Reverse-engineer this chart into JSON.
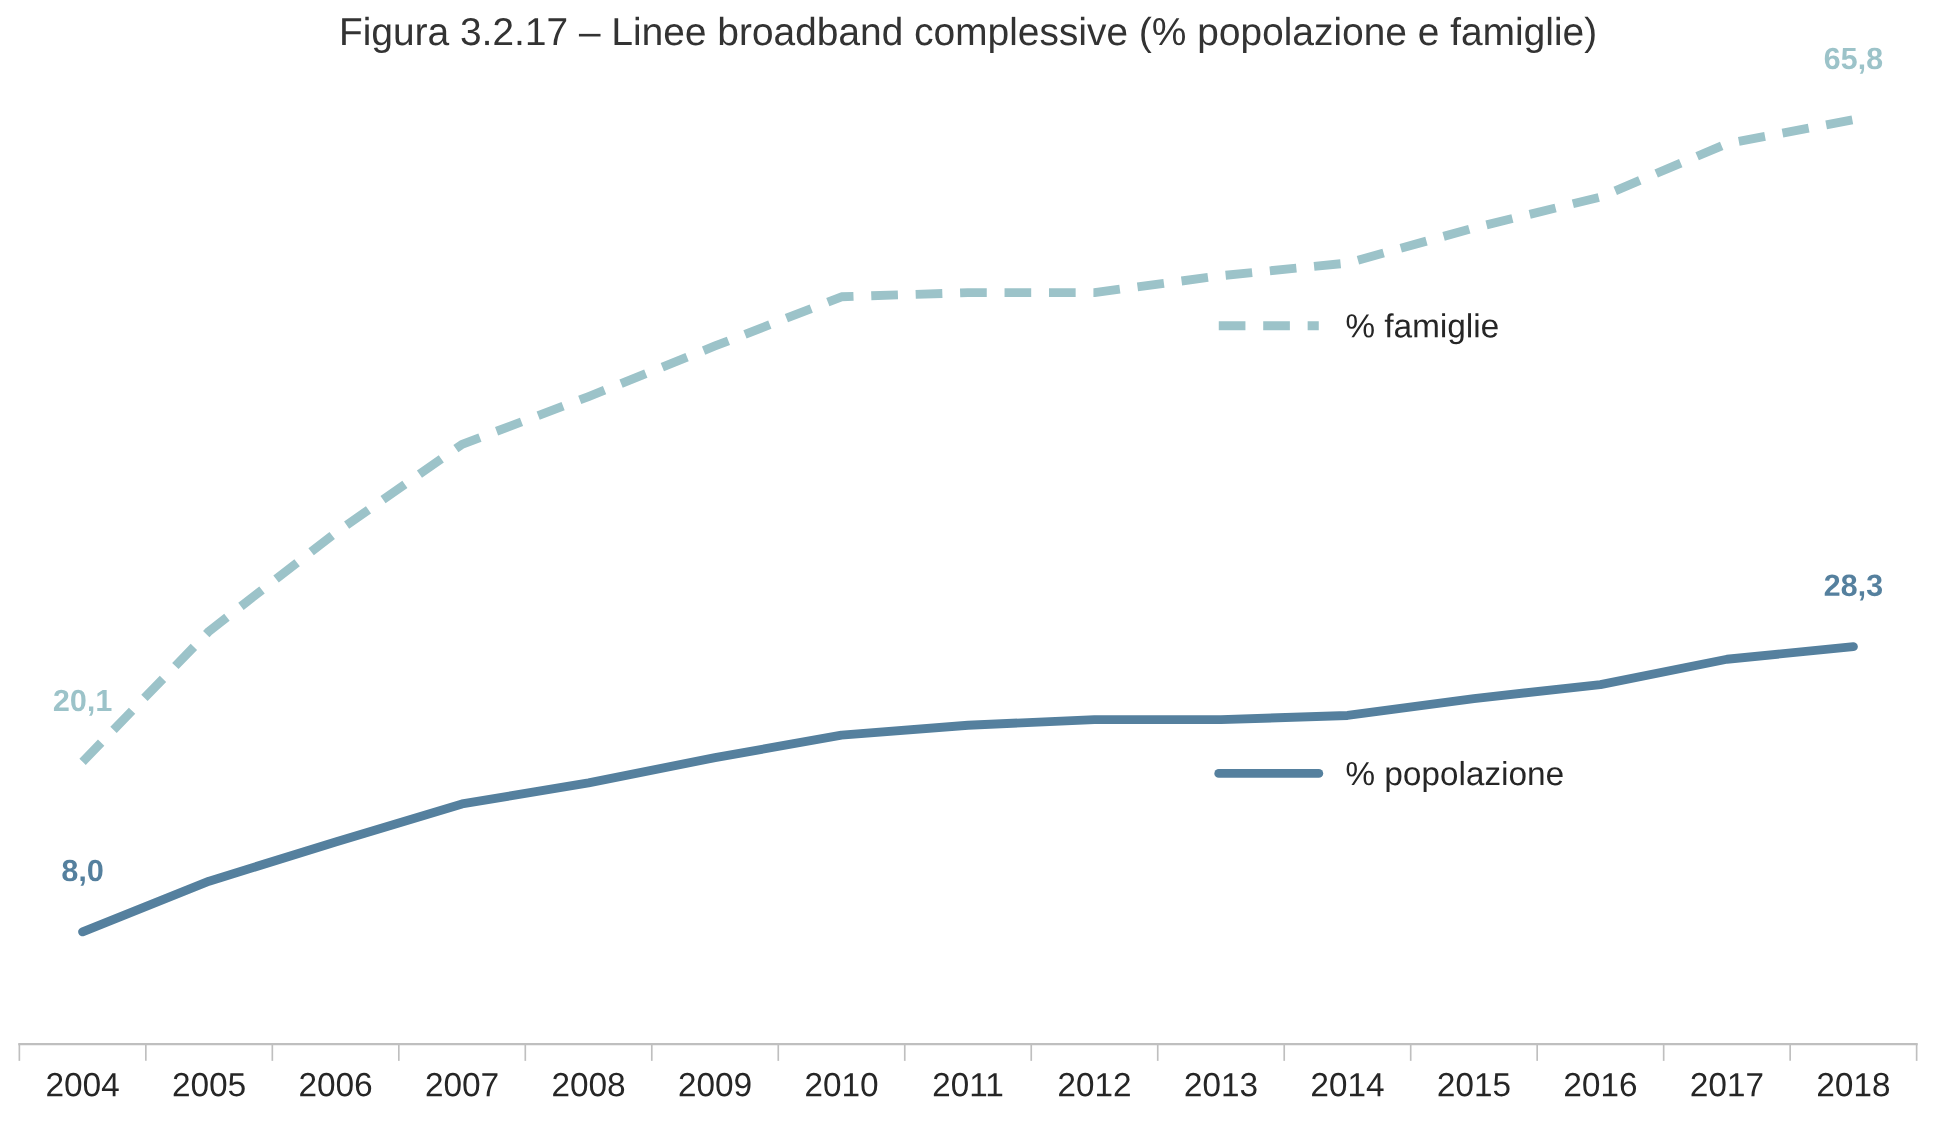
{
  "chart_data": {
    "type": "line",
    "title": "Figura 3.2.17 – Linee broadband complessive (% popolazione e famiglie)",
    "categories": [
      "2004",
      "2005",
      "2006",
      "2007",
      "2008",
      "2009",
      "2010",
      "2011",
      "2012",
      "2013",
      "2014",
      "2015",
      "2016",
      "2017",
      "2018"
    ],
    "series": [
      {
        "name": "% famiglie",
        "color": "#9cc3c9",
        "line_style": "dashed",
        "values": [
          20.1,
          29.4,
          36.4,
          42.7,
          46.1,
          49.7,
          53.2,
          53.5,
          53.5,
          54.7,
          55.6,
          58.1,
          60.3,
          64.1,
          65.8
        ],
        "value_labels": [
          "20,1",
          null,
          null,
          null,
          null,
          null,
          null,
          null,
          null,
          null,
          null,
          null,
          null,
          null,
          "65,8"
        ]
      },
      {
        "name": "% popolazione",
        "color": "#55809e",
        "line_style": "solid",
        "values": [
          8.0,
          11.6,
          14.4,
          17.1,
          18.6,
          20.4,
          22.0,
          22.7,
          23.1,
          23.1,
          23.4,
          24.6,
          25.6,
          27.4,
          28.3
        ],
        "value_labels": [
          "8,0",
          null,
          null,
          null,
          null,
          null,
          null,
          null,
          null,
          null,
          null,
          null,
          null,
          null,
          "28,3"
        ]
      }
    ],
    "legend": "right",
    "grid": false
  }
}
